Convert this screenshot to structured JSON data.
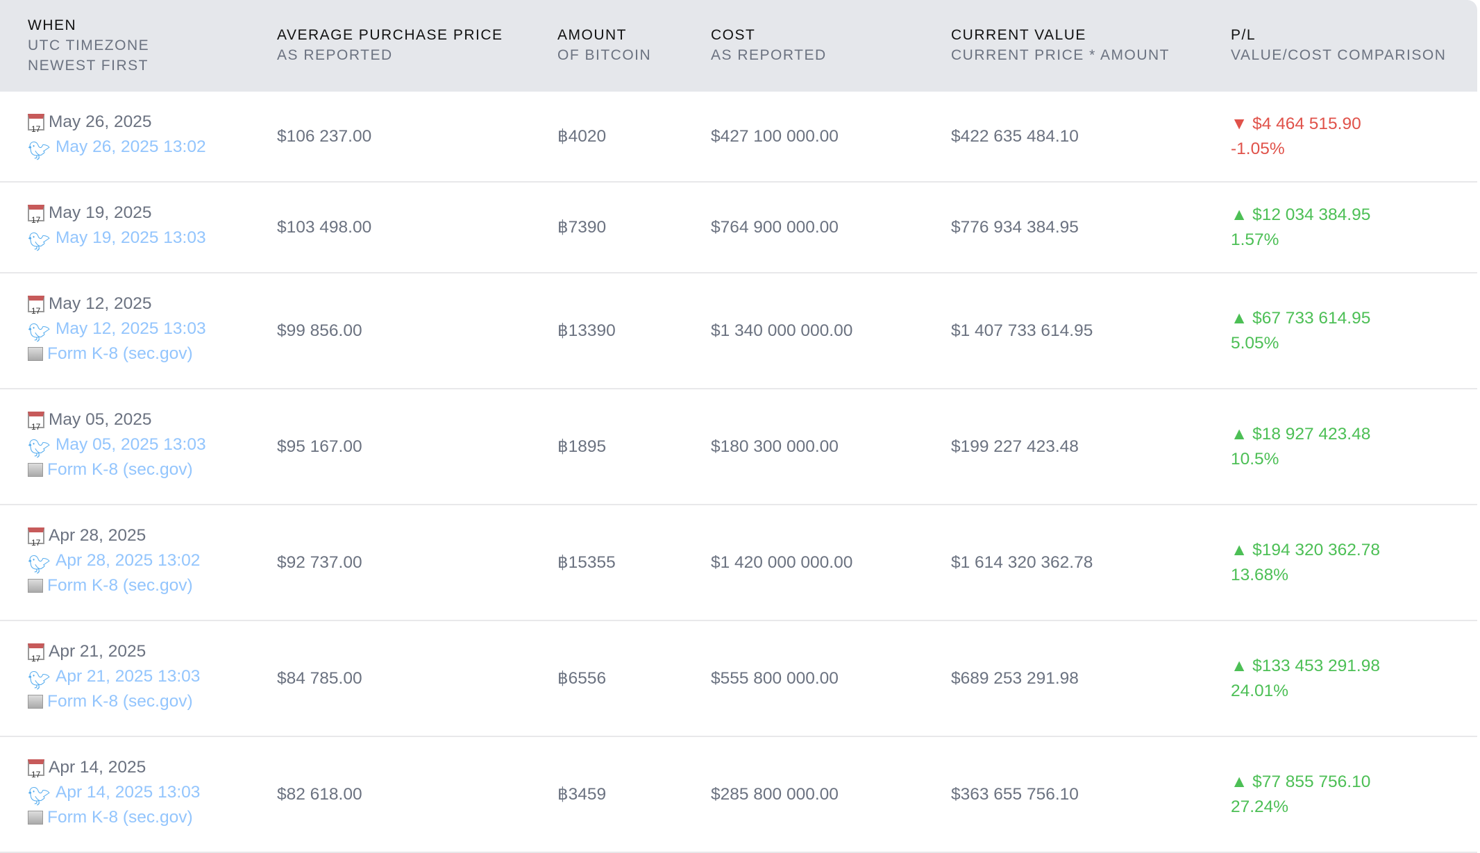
{
  "colors": {
    "header_bg": "#e5e7eb",
    "text": "#6b7280",
    "link": "#93c5fd",
    "twitter": "#55acee",
    "loss": "#e0524a",
    "gain": "#4cbf55"
  },
  "headers": [
    {
      "title": "WHEN",
      "sub": [
        "UTC TIMEZONE",
        "NEWEST FIRST"
      ]
    },
    {
      "title": "AVERAGE PURCHASE PRICE",
      "sub": [
        "AS REPORTED"
      ]
    },
    {
      "title": "AMOUNT",
      "sub": [
        "OF BITCOIN"
      ]
    },
    {
      "title": "COST",
      "sub": [
        "AS REPORTED"
      ]
    },
    {
      "title": "CURRENT VALUE",
      "sub": [
        "CURRENT PRICE * AMOUNT"
      ]
    },
    {
      "title": "P/L",
      "sub": [
        "VALUE/COST COMPARISON"
      ]
    }
  ],
  "rows": [
    {
      "date": "May 26, 2025",
      "tweet": "May 26, 2025 13:02",
      "filing": null,
      "avg_price": "$106 237.00",
      "amount": "฿4020",
      "cost": "$427 100 000.00",
      "value": "$422 635 484.10",
      "pl": "$4 464 515.90",
      "pl_pct": "-1.05%",
      "dir": "down"
    },
    {
      "date": "May 19, 2025",
      "tweet": "May 19, 2025 13:03",
      "filing": null,
      "avg_price": "$103 498.00",
      "amount": "฿7390",
      "cost": "$764 900 000.00",
      "value": "$776 934 384.95",
      "pl": "$12 034 384.95",
      "pl_pct": "1.57%",
      "dir": "up"
    },
    {
      "date": "May 12, 2025",
      "tweet": "May 12, 2025 13:03",
      "filing": "Form K-8 (sec.gov)",
      "avg_price": "$99 856.00",
      "amount": "฿13390",
      "cost": "$1 340 000 000.00",
      "value": "$1 407 733 614.95",
      "pl": "$67 733 614.95",
      "pl_pct": "5.05%",
      "dir": "up"
    },
    {
      "date": "May 05, 2025",
      "tweet": "May 05, 2025 13:03",
      "filing": "Form K-8 (sec.gov)",
      "avg_price": "$95 167.00",
      "amount": "฿1895",
      "cost": "$180 300 000.00",
      "value": "$199 227 423.48",
      "pl": "$18 927 423.48",
      "pl_pct": "10.5%",
      "dir": "up"
    },
    {
      "date": "Apr 28, 2025",
      "tweet": "Apr 28, 2025 13:02",
      "filing": "Form K-8 (sec.gov)",
      "avg_price": "$92 737.00",
      "amount": "฿15355",
      "cost": "$1 420 000 000.00",
      "value": "$1 614 320 362.78",
      "pl": "$194 320 362.78",
      "pl_pct": "13.68%",
      "dir": "up"
    },
    {
      "date": "Apr 21, 2025",
      "tweet": "Apr 21, 2025 13:03",
      "filing": "Form K-8 (sec.gov)",
      "avg_price": "$84 785.00",
      "amount": "฿6556",
      "cost": "$555 800 000.00",
      "value": "$689 253 291.98",
      "pl": "$133 453 291.98",
      "pl_pct": "24.01%",
      "dir": "up"
    },
    {
      "date": "Apr 14, 2025",
      "tweet": "Apr 14, 2025 13:03",
      "filing": "Form K-8 (sec.gov)",
      "avg_price": "$82 618.00",
      "amount": "฿3459",
      "cost": "$285 800 000.00",
      "value": "$363 655 756.10",
      "pl": "$77 855 756.10",
      "pl_pct": "27.24%",
      "dir": "up"
    }
  ]
}
